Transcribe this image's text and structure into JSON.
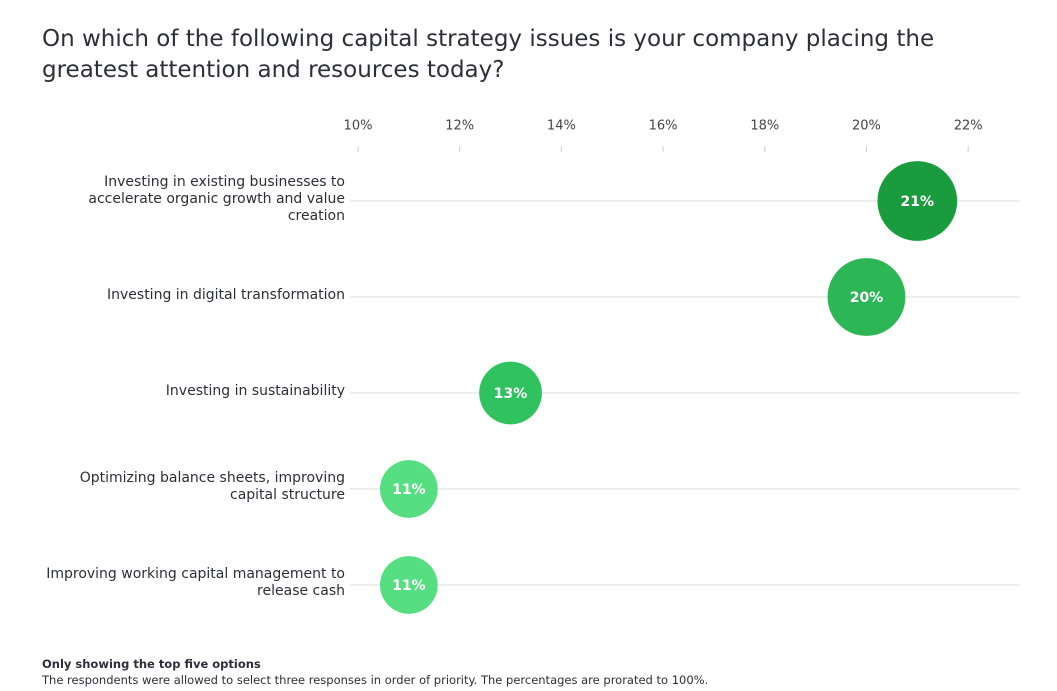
{
  "chart_data": {
    "type": "dot",
    "title": "On which of the following capital strategy issues is your company placing the greatest attention and resources today?",
    "categories": [
      "Investing in existing businesses to accelerate organic growth and value creation",
      "Investing in digital transformation",
      "Investing in sustainability",
      "Optimizing balance sheets, improving capital structure",
      "Improving working capital management to release cash"
    ],
    "values": [
      21,
      20,
      13,
      11,
      11
    ],
    "value_labels": [
      "21%",
      "20%",
      "13%",
      "11%",
      "11%"
    ],
    "colors": [
      "#1a9b3d",
      "#2db656",
      "#31c260",
      "#56de83",
      "#56de83"
    ],
    "xlim": [
      10,
      23
    ],
    "xticks": [
      {
        "value": 10,
        "label": "10%"
      },
      {
        "value": 12,
        "label": "12%"
      },
      {
        "value": 14,
        "label": "14%"
      },
      {
        "value": 16,
        "label": "16%"
      },
      {
        "value": 18,
        "label": "18%"
      },
      {
        "value": 20,
        "label": "20%"
      },
      {
        "value": 22,
        "label": "22%"
      }
    ],
    "grid": true,
    "notes": [
      "Only showing the top five options",
      "The respondents were allowed to select three responses in order of priority. The percentages are prorated to 100%."
    ]
  }
}
